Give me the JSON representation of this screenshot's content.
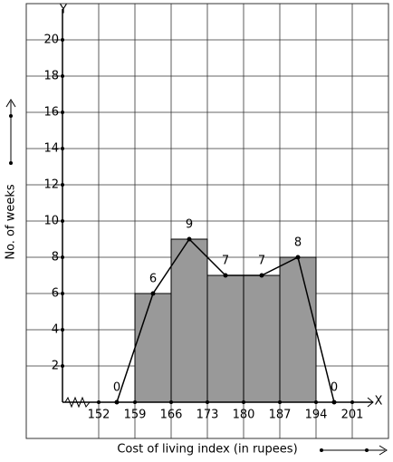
{
  "chart_data": {
    "type": "histogram",
    "x_label": "Cost of living index (in rupees)",
    "y_label": "No. of weeks",
    "x_axis_letter": "X",
    "y_axis_letter": "Y",
    "bins": [
      159,
      166,
      173,
      180,
      187,
      194
    ],
    "values": [
      6,
      9,
      7,
      7,
      8
    ],
    "color": "#999999",
    "polygon": {
      "x": [
        155.5,
        162.5,
        169.5,
        176.5,
        183.5,
        190.5,
        197.5
      ],
      "values": [
        0,
        6,
        9,
        7,
        7,
        8,
        0
      ]
    },
    "xlim": [
      138,
      208
    ],
    "ylim": [
      -2,
      22
    ],
    "xticks": [
      152,
      159,
      166,
      173,
      180,
      187,
      194,
      201
    ],
    "yticks": [
      2,
      4,
      6,
      8,
      10,
      12,
      14,
      16,
      18,
      20
    ],
    "grid": true
  }
}
